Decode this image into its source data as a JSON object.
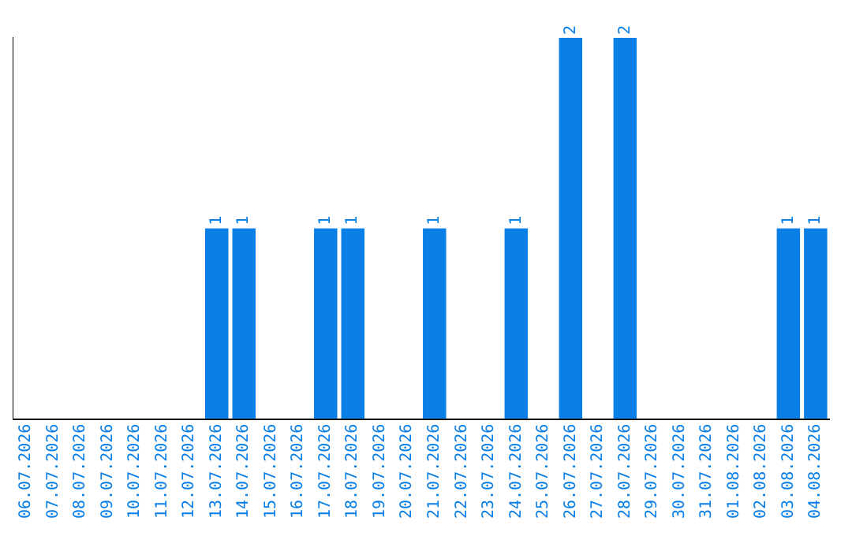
{
  "chart_data": {
    "type": "bar",
    "categories": [
      "06.07.2026",
      "07.07.2026",
      "08.07.2026",
      "09.07.2026",
      "10.07.2026",
      "11.07.2026",
      "12.07.2026",
      "13.07.2026",
      "14.07.2026",
      "15.07.2026",
      "16.07.2026",
      "17.07.2026",
      "18.07.2026",
      "19.07.2026",
      "20.07.2026",
      "21.07.2026",
      "22.07.2026",
      "23.07.2026",
      "24.07.2026",
      "25.07.2026",
      "26.07.2026",
      "27.07.2026",
      "28.07.2026",
      "29.07.2026",
      "30.07.2026",
      "31.07.2026",
      "01.08.2026",
      "02.08.2026",
      "03.08.2026",
      "04.08.2026"
    ],
    "values": [
      0,
      0,
      0,
      0,
      0,
      0,
      0,
      1,
      1,
      0,
      0,
      1,
      1,
      0,
      0,
      1,
      0,
      0,
      1,
      0,
      2,
      0,
      2,
      0,
      0,
      0,
      0,
      0,
      1,
      1
    ],
    "value_labels": [
      null,
      null,
      null,
      null,
      null,
      null,
      null,
      "1",
      "1",
      null,
      null,
      "1",
      "1",
      null,
      null,
      "1",
      null,
      null,
      "1",
      null,
      "2",
      null,
      "2",
      null,
      null,
      null,
      null,
      null,
      "1",
      "1"
    ],
    "color": "#0a7fe6",
    "ylim": [
      0,
      2
    ],
    "tick_labels": "x",
    "grid": false,
    "legend": false
  }
}
